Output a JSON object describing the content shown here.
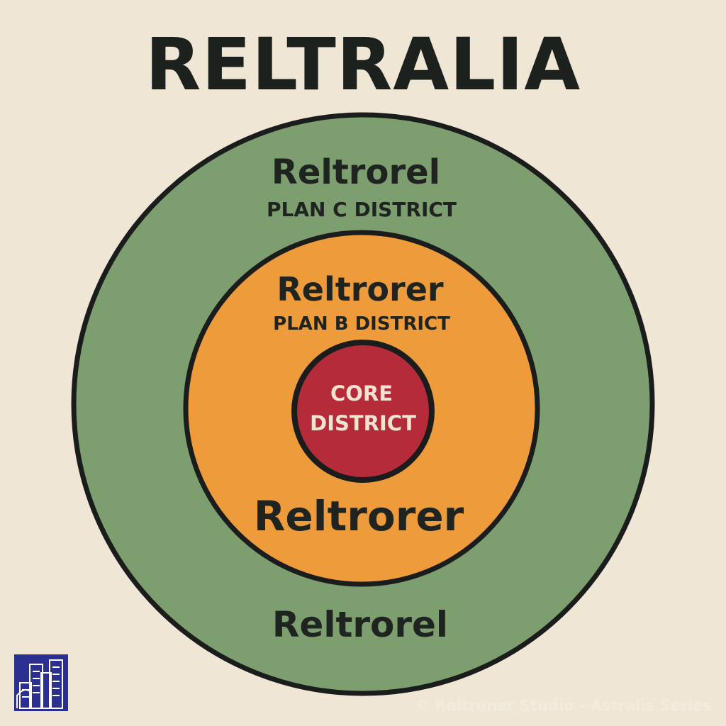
{
  "title": "RELTRALIA",
  "rings": {
    "outer": {
      "name_top": "Reltrorel",
      "subtitle": "PLAN C DISTRICT",
      "name_bottom": "Reltrorel",
      "color": "#7d9f6f"
    },
    "middle": {
      "name_top": "Reltrorer",
      "subtitle": "PLAN B DISTRICT",
      "name_bottom": "Reltrorer",
      "color": "#ee9b3b"
    },
    "core": {
      "line1": "CORE",
      "line2": "DISTRICT",
      "color": "#b52b3a"
    }
  },
  "outline_color": "#1a1d1b",
  "background_color": "#efe6d5",
  "logo": {
    "icon": "city-buildings-icon",
    "color": "#2b2f8f"
  },
  "watermark": "© Reltroner Studio - Astralis Series"
}
